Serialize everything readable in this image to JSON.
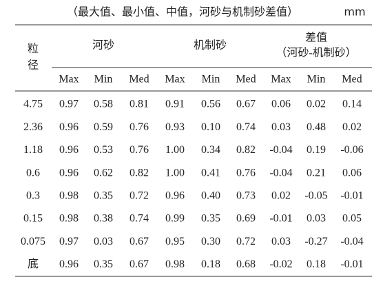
{
  "header": {
    "title": "（最大值、最小值、中值，河砂与机制砂差值）",
    "unit": "mm"
  },
  "table": {
    "row_header": [
      "粒",
      "径"
    ],
    "groups": [
      "河砂",
      "机制砂",
      "差值",
      "（河砂-机制砂）"
    ],
    "subheaders": [
      "Max",
      "Min",
      "Med",
      "Max",
      "Min",
      "Med",
      "Max",
      "Min",
      "Med"
    ],
    "rows": [
      [
        "4.75",
        "0.97",
        "0.58",
        "0.81",
        "0.91",
        "0.56",
        "0.67",
        "0.06",
        "0.02",
        "0.14"
      ],
      [
        "2.36",
        "0.96",
        "0.59",
        "0.76",
        "0.93",
        "0.10",
        "0.74",
        "0.03",
        "0.48",
        "0.02"
      ],
      [
        "1.18",
        "0.96",
        "0.53",
        "0.76",
        "1.00",
        "0.34",
        "0.82",
        "-0.04",
        "0.19",
        "-0.06"
      ],
      [
        "0.6",
        "0.96",
        "0.62",
        "0.82",
        "1.00",
        "0.41",
        "0.76",
        "-0.04",
        "0.21",
        "0.06"
      ],
      [
        "0.3",
        "0.98",
        "0.35",
        "0.72",
        "0.96",
        "0.40",
        "0.73",
        "0.02",
        "-0.05",
        "-0.01"
      ],
      [
        "0.15",
        "0.98",
        "0.38",
        "0.74",
        "0.99",
        "0.35",
        "0.69",
        "-0.01",
        "0.03",
        "0.05"
      ],
      [
        "0.075",
        "0.97",
        "0.03",
        "0.67",
        "0.95",
        "0.30",
        "0.72",
        "0.03",
        "-0.27",
        "-0.04"
      ],
      [
        "底",
        "0.96",
        "0.35",
        "0.67",
        "0.98",
        "0.18",
        "0.68",
        "-0.02",
        "0.18",
        "-0.01"
      ]
    ]
  }
}
